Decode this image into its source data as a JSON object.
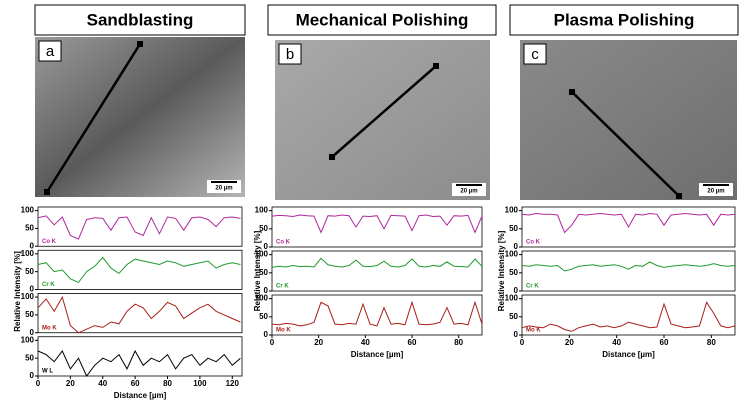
{
  "chart_data": [
    {
      "type": "line",
      "title": "Sandblasting",
      "label": "a",
      "scale_bar": "20 µm",
      "xlabel": "Distance [µm]",
      "ylabel": "Relative Intensity [%]",
      "x": [
        0,
        5,
        10,
        15,
        20,
        25,
        30,
        35,
        40,
        45,
        50,
        55,
        60,
        65,
        70,
        75,
        80,
        85,
        90,
        95,
        100,
        105,
        110,
        115,
        120,
        125
      ],
      "xlim": [
        0,
        126
      ],
      "xticks": [
        0,
        20,
        40,
        60,
        80,
        100,
        120
      ],
      "ylim": [
        0,
        110
      ],
      "yticks": [
        0,
        50,
        100
      ],
      "series": [
        {
          "name": "Co K",
          "color": "#b0279e",
          "values": [
            80,
            85,
            60,
            82,
            30,
            20,
            75,
            80,
            78,
            45,
            80,
            82,
            40,
            30,
            80,
            35,
            82,
            78,
            45,
            80,
            82,
            75,
            55,
            80,
            82,
            78
          ]
        },
        {
          "name": "Cr K",
          "color": "#1f9a2a",
          "values": [
            70,
            75,
            50,
            55,
            30,
            20,
            50,
            65,
            90,
            60,
            45,
            70,
            85,
            80,
            75,
            70,
            80,
            75,
            65,
            70,
            75,
            80,
            60,
            70,
            75,
            70
          ]
        },
        {
          "name": "Mo K",
          "color": "#a8201a",
          "values": [
            70,
            95,
            60,
            100,
            20,
            0,
            10,
            20,
            15,
            30,
            25,
            60,
            80,
            70,
            40,
            60,
            85,
            75,
            40,
            55,
            70,
            80,
            60,
            50,
            40,
            30
          ]
        },
        {
          "name": "W L",
          "color": "#000000",
          "values": [
            70,
            60,
            40,
            70,
            20,
            50,
            0,
            30,
            50,
            40,
            60,
            20,
            70,
            30,
            50,
            40,
            60,
            20,
            50,
            60,
            30,
            50,
            40,
            60,
            30,
            50
          ]
        }
      ]
    },
    {
      "type": "line",
      "title": "Mechanical Polishing",
      "label": "b",
      "scale_bar": "20 µm",
      "xlabel": "Distance [µm]",
      "ylabel": "Relative Intensity [%]",
      "x": [
        0,
        3,
        6,
        9,
        12,
        15,
        18,
        21,
        24,
        27,
        30,
        33,
        36,
        39,
        42,
        45,
        48,
        51,
        54,
        57,
        60,
        63,
        66,
        69,
        72,
        75,
        78,
        81,
        84,
        87,
        90
      ],
      "xlim": [
        0,
        90
      ],
      "xticks": [
        0,
        20,
        40,
        60,
        80
      ],
      "ylim": [
        0,
        110
      ],
      "yticks": [
        0,
        50,
        100
      ],
      "series": [
        {
          "name": "Co K",
          "color": "#b0279e",
          "values": [
            85,
            87,
            86,
            84,
            88,
            86,
            85,
            40,
            86,
            85,
            88,
            86,
            55,
            85,
            84,
            86,
            50,
            87,
            86,
            85,
            45,
            86,
            88,
            84,
            85,
            60,
            86,
            85,
            87,
            40,
            85
          ]
        },
        {
          "name": "Cr K",
          "color": "#1f9a2a",
          "values": [
            65,
            68,
            66,
            70,
            67,
            68,
            66,
            90,
            72,
            68,
            66,
            70,
            85,
            68,
            67,
            70,
            82,
            68,
            66,
            70,
            88,
            68,
            66,
            70,
            68,
            80,
            68,
            67,
            66,
            88,
            68
          ]
        },
        {
          "name": "Mo K",
          "color": "#a8201a",
          "values": [
            30,
            28,
            32,
            30,
            25,
            28,
            35,
            90,
            80,
            30,
            28,
            32,
            30,
            85,
            30,
            25,
            75,
            30,
            32,
            28,
            90,
            30,
            28,
            30,
            35,
            75,
            30,
            32,
            28,
            90,
            30
          ]
        }
      ]
    },
    {
      "type": "line",
      "title": "Plasma Polishing",
      "label": "c",
      "scale_bar": "20 µm",
      "xlabel": "Distance [µm]",
      "ylabel": "Relative Intensity [%]",
      "x": [
        0,
        3,
        6,
        9,
        12,
        15,
        18,
        21,
        24,
        27,
        30,
        33,
        36,
        39,
        42,
        45,
        48,
        51,
        54,
        57,
        60,
        63,
        66,
        69,
        72,
        75,
        78,
        81,
        84,
        87,
        90
      ],
      "xlim": [
        0,
        90
      ],
      "xticks": [
        0,
        20,
        40,
        60,
        80
      ],
      "ylim": [
        0,
        110
      ],
      "yticks": [
        0,
        50,
        100
      ],
      "series": [
        {
          "name": "Co K",
          "color": "#b0279e",
          "values": [
            90,
            88,
            92,
            90,
            90,
            88,
            40,
            60,
            90,
            88,
            90,
            92,
            90,
            88,
            90,
            55,
            90,
            88,
            92,
            90,
            60,
            88,
            90,
            92,
            90,
            88,
            90,
            60,
            90,
            88,
            90
          ]
        },
        {
          "name": "Cr K",
          "color": "#1f9a2a",
          "values": [
            70,
            68,
            72,
            70,
            68,
            70,
            55,
            60,
            68,
            70,
            72,
            68,
            70,
            72,
            68,
            60,
            70,
            68,
            80,
            70,
            65,
            68,
            70,
            72,
            70,
            68,
            70,
            75,
            70,
            68,
            70
          ]
        },
        {
          "name": "Mo K",
          "color": "#a8201a",
          "values": [
            20,
            25,
            22,
            20,
            30,
            25,
            15,
            10,
            20,
            25,
            30,
            22,
            25,
            20,
            25,
            35,
            30,
            25,
            20,
            22,
            85,
            30,
            25,
            20,
            22,
            25,
            90,
            60,
            25,
            20,
            25
          ]
        }
      ]
    }
  ]
}
